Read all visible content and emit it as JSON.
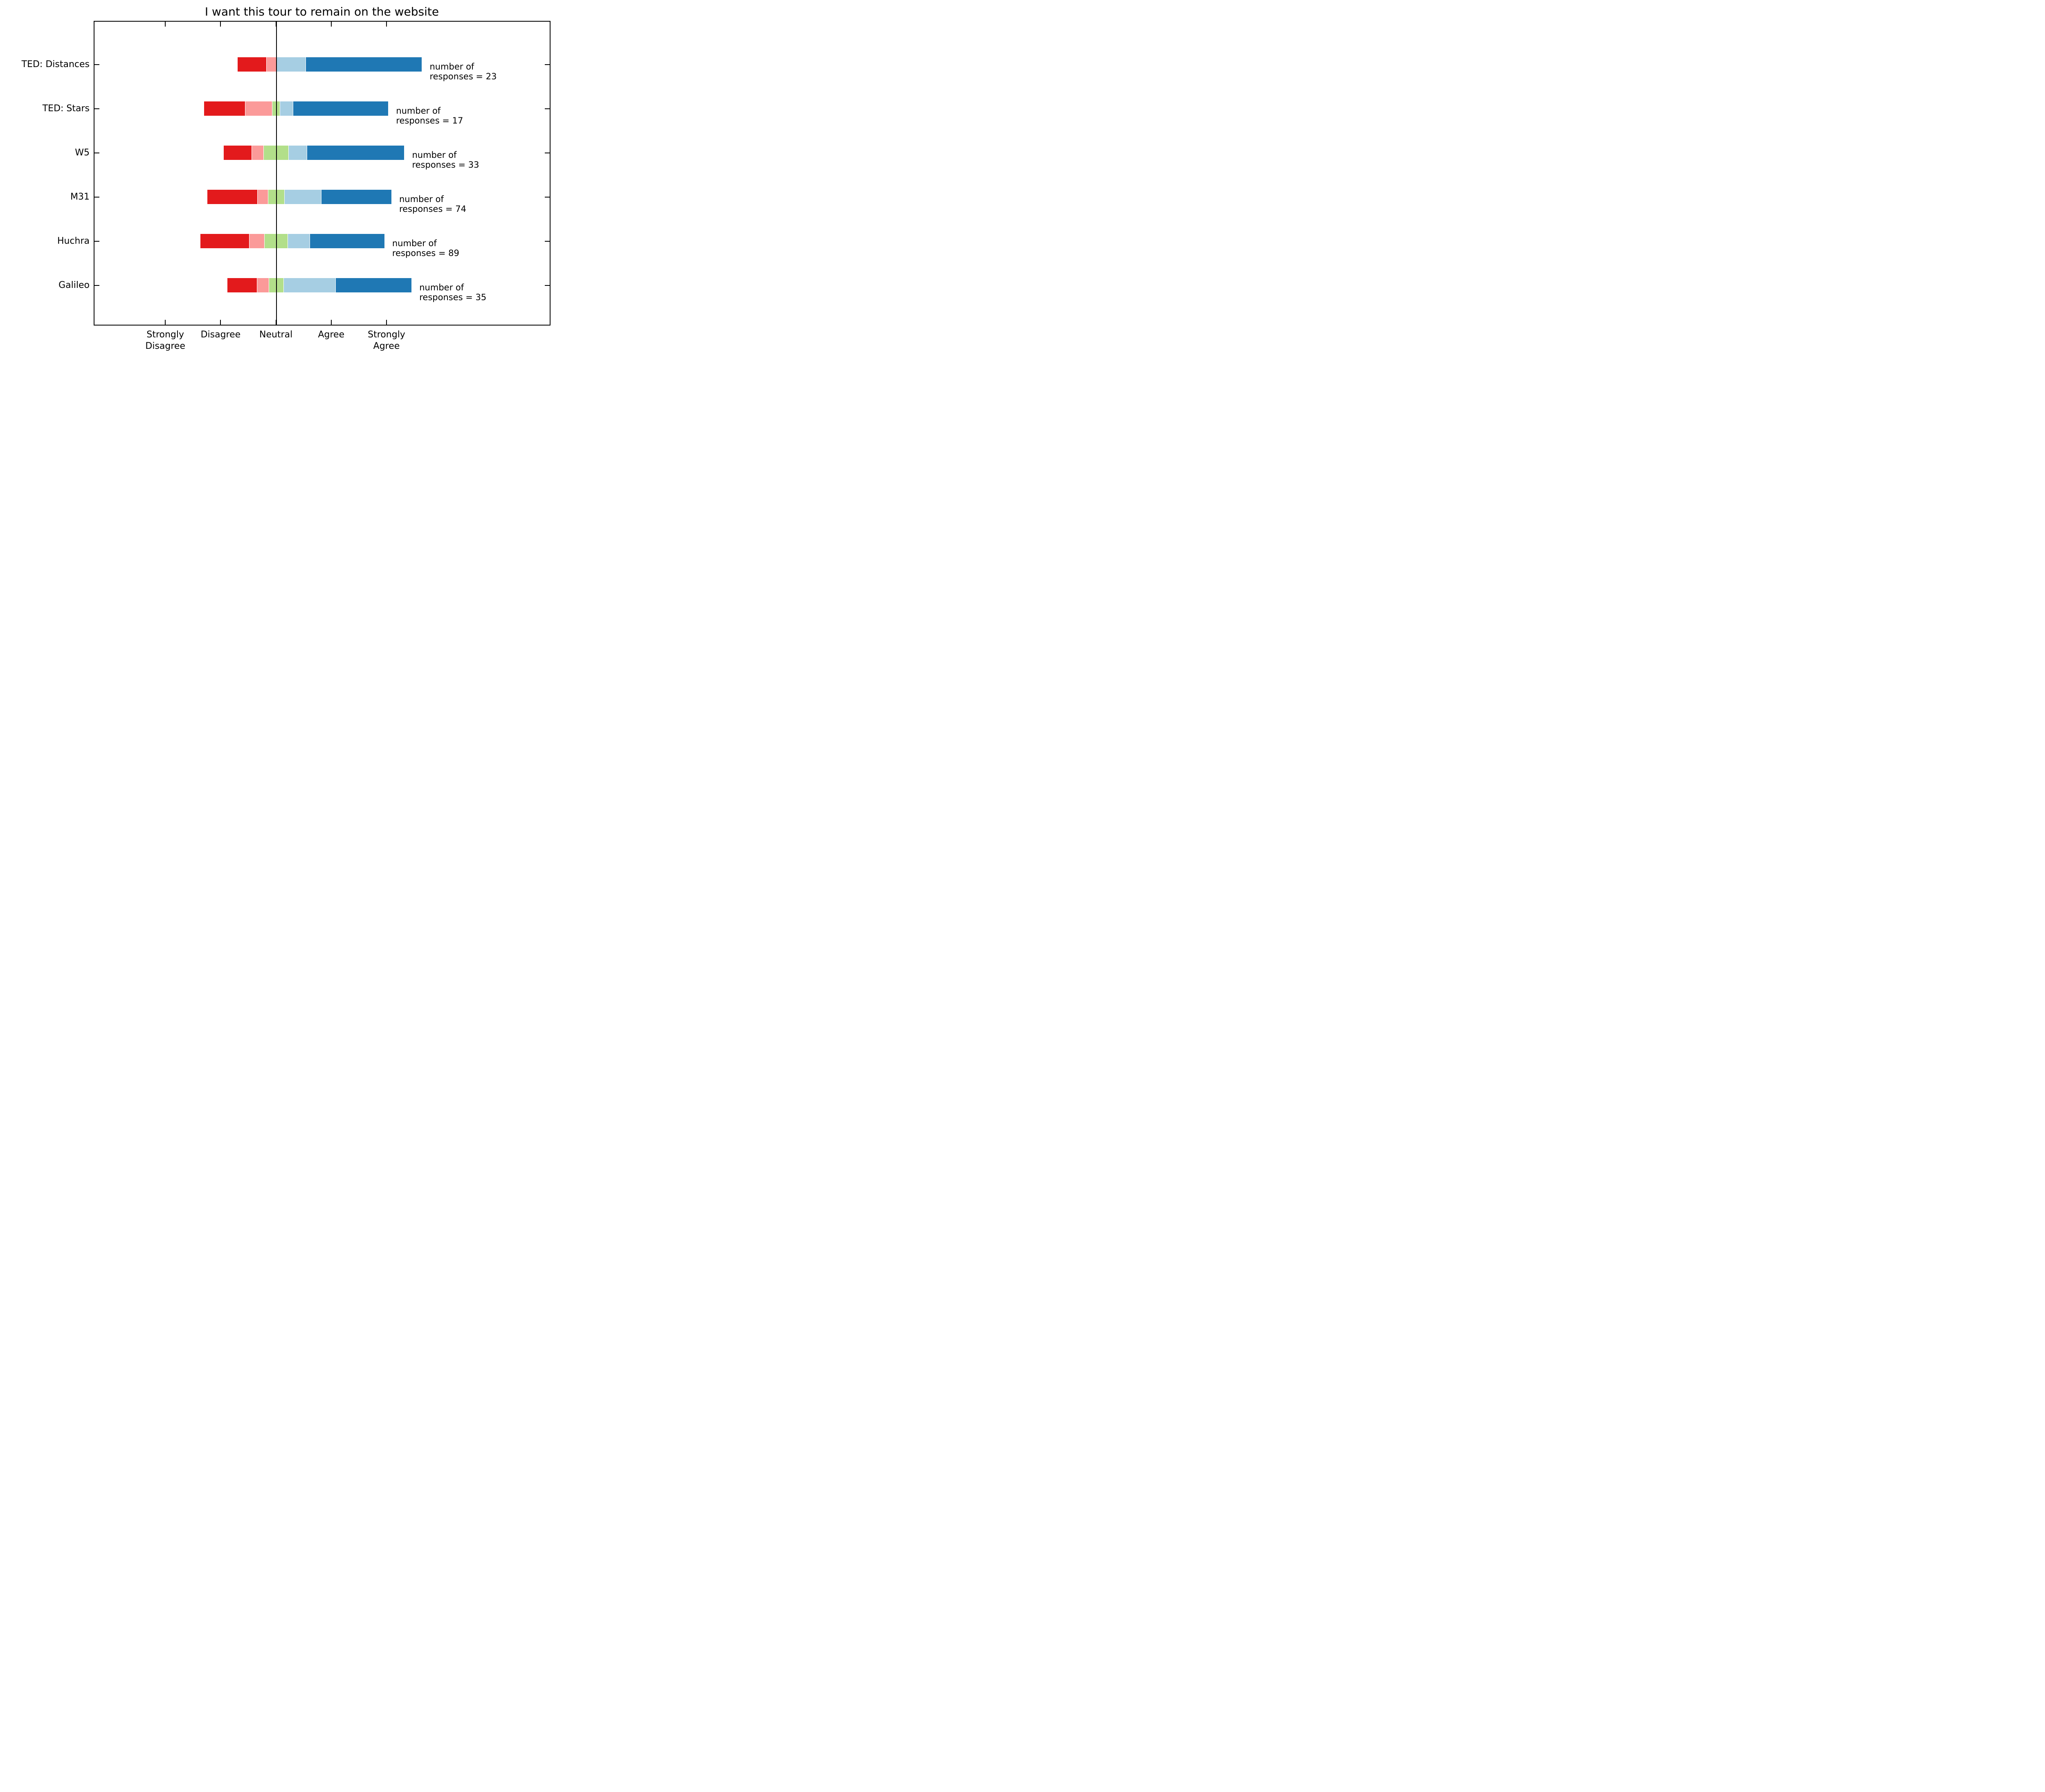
{
  "title": "I want this tour to remain on the website",
  "chart_data": {
    "type": "bar",
    "orientation": "horizontal",
    "stacked": true,
    "diverging": true,
    "baseline": "Neutral",
    "title": "I want this tour to remain on the website",
    "categories": [
      "TED: Distances",
      "TED: Stars",
      "W5",
      "M31",
      "Huchra",
      "Galileo"
    ],
    "likert_levels": [
      "Strongly Disagree",
      "Disagree",
      "Neutral",
      "Agree",
      "Strongly Agree"
    ],
    "level_colors": [
      "#e31a1c",
      "#fb9a99",
      "#b2df8a",
      "#a6cee3",
      "#1f78b4"
    ],
    "x_tick_labels": [
      "Strongly\nDisagree",
      "Disagree",
      "Neutral",
      "Agree",
      "Strongly\nAgree"
    ],
    "grid": false,
    "legend": "none",
    "rows": [
      {
        "label": "TED: Distances",
        "responses": 23,
        "pct": [
          15.5,
          5.3,
          0.0,
          16.0,
          63.3
        ],
        "annotation": [
          "number of",
          "responses = 23"
        ]
      },
      {
        "label": "TED: Stars",
        "responses": 17,
        "pct": [
          22.2,
          14.6,
          4.3,
          7.1,
          51.8
        ],
        "annotation": [
          "number of",
          "responses = 17"
        ]
      },
      {
        "label": "W5",
        "responses": 33,
        "pct": [
          15.3,
          6.3,
          13.7,
          10.0,
          52.9
        ],
        "annotation": [
          "number of",
          "responses = 33"
        ]
      },
      {
        "label": "M31",
        "responses": 74,
        "pct": [
          27.1,
          5.7,
          8.9,
          20.1,
          38.2
        ],
        "annotation": [
          "number of",
          "responses = 74"
        ]
      },
      {
        "label": "Huchra",
        "responses": 89,
        "pct": [
          26.5,
          8.3,
          12.5,
          12.0,
          40.7
        ],
        "annotation": [
          "number of",
          "responses = 89"
        ]
      },
      {
        "label": "Galileo",
        "responses": 35,
        "pct": [
          16.0,
          6.4,
          8.0,
          28.3,
          41.4
        ],
        "annotation": [
          "number of",
          "responses = 35"
        ]
      }
    ],
    "layout_note": "Segment widths are percent of a full-length bar; each bar is shifted so the midpoint of its Neutral segment sits on the vertical line at the Neutral tick."
  }
}
